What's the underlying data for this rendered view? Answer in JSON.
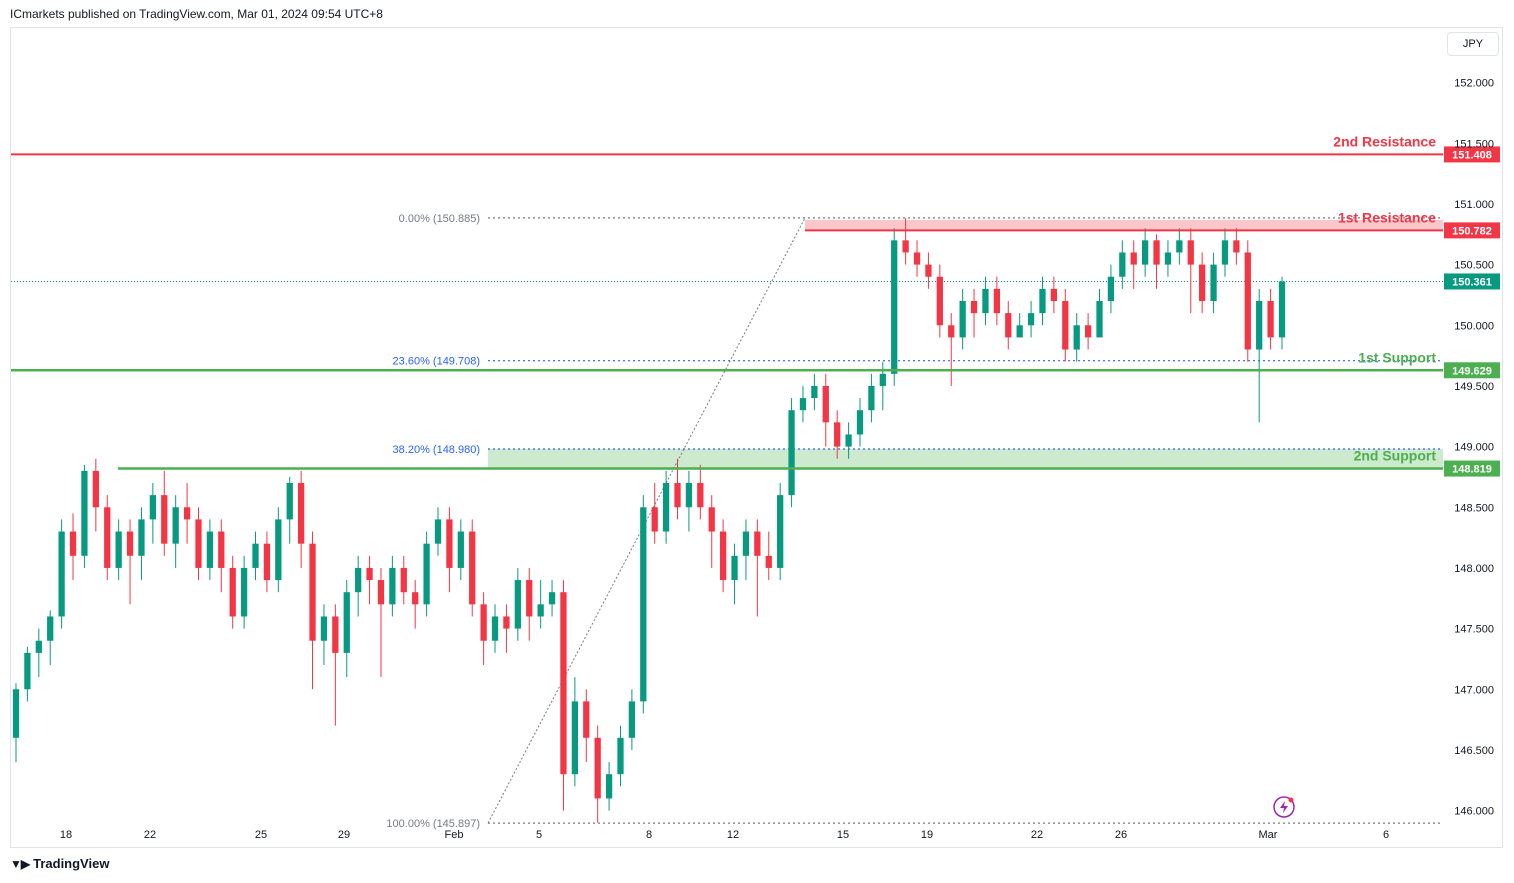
{
  "header": {
    "publisher_text": "ICmarkets published on TradingView.com, Mar 01, 2024 09:54 UTC+8"
  },
  "currency": "JPY",
  "footer": {
    "brand": "TradingView"
  },
  "chart_data": {
    "type": "candlestick",
    "ylim": [
      145.7,
      152.45
    ],
    "y_ticks": [
      "152.000",
      "151.500",
      "151.000",
      "150.500",
      "150.000",
      "149.500",
      "149.000",
      "148.500",
      "148.000",
      "147.500",
      "147.000",
      "146.500",
      "146.000"
    ],
    "x_ticks": [
      "18",
      "22",
      "25",
      "29",
      "Feb",
      "5",
      "8",
      "12",
      "15",
      "19",
      "22",
      "26",
      "Mar",
      "6"
    ],
    "current_price": {
      "value": 150.361,
      "label": "150.361"
    },
    "levels": [
      {
        "name": "2nd Resistance",
        "value": 151.408,
        "label": "151.408",
        "color": "#f23645"
      },
      {
        "name": "1st Resistance",
        "value": 150.782,
        "label": "150.782",
        "color": "#f23645"
      },
      {
        "name": "1st Support",
        "value": 149.629,
        "label": "149.629",
        "color": "#4caf50"
      },
      {
        "name": "2nd Support",
        "value": 148.819,
        "label": "148.819",
        "color": "#4caf50"
      }
    ],
    "fibonacci": [
      {
        "label": "0.00% (150.885)",
        "value": 150.885
      },
      {
        "label": "23.60% (149.708)",
        "value": 149.708
      },
      {
        "label": "38.20% (148.980)",
        "value": 148.98
      },
      {
        "label": "100.00% (145.897)",
        "value": 145.897
      }
    ],
    "candles": [
      [
        146.6,
        147.0,
        147.05,
        146.4
      ],
      [
        147.0,
        147.3,
        147.35,
        146.9
      ],
      [
        147.3,
        147.4,
        147.5,
        147.1
      ],
      [
        147.4,
        147.6,
        147.65,
        147.2
      ],
      [
        147.6,
        148.3,
        148.4,
        147.5
      ],
      [
        148.3,
        148.1,
        148.45,
        147.9
      ],
      [
        148.1,
        148.8,
        148.85,
        148.0
      ],
      [
        148.8,
        148.5,
        148.9,
        148.3
      ],
      [
        148.5,
        148.0,
        148.6,
        147.9
      ],
      [
        148.0,
        148.3,
        148.4,
        147.9
      ],
      [
        148.3,
        148.1,
        148.4,
        147.7
      ],
      [
        148.1,
        148.4,
        148.5,
        147.9
      ],
      [
        148.4,
        148.6,
        148.7,
        148.2
      ],
      [
        148.6,
        148.2,
        148.8,
        148.1
      ],
      [
        148.2,
        148.5,
        148.6,
        148.0
      ],
      [
        148.5,
        148.4,
        148.7,
        148.2
      ],
      [
        148.4,
        148.0,
        148.5,
        147.9
      ],
      [
        148.0,
        148.3,
        148.4,
        147.9
      ],
      [
        148.3,
        148.0,
        148.4,
        147.8
      ],
      [
        148.0,
        147.6,
        148.1,
        147.5
      ],
      [
        147.6,
        148.0,
        148.1,
        147.5
      ],
      [
        148.0,
        148.2,
        148.3,
        147.9
      ],
      [
        148.2,
        147.9,
        148.3,
        147.8
      ],
      [
        147.9,
        148.4,
        148.5,
        147.8
      ],
      [
        148.4,
        148.7,
        148.75,
        148.2
      ],
      [
        148.7,
        148.2,
        148.8,
        148.0
      ],
      [
        148.2,
        147.4,
        148.3,
        147.0
      ],
      [
        147.4,
        147.6,
        147.7,
        147.2
      ],
      [
        147.6,
        147.3,
        147.7,
        146.7
      ],
      [
        147.3,
        147.8,
        147.9,
        147.1
      ],
      [
        147.8,
        148.0,
        148.1,
        147.6
      ],
      [
        148.0,
        147.9,
        148.1,
        147.7
      ],
      [
        147.9,
        147.7,
        148.0,
        147.1
      ],
      [
        147.7,
        148.0,
        148.1,
        147.6
      ],
      [
        148.0,
        147.8,
        148.1,
        147.7
      ],
      [
        147.8,
        147.7,
        147.9,
        147.5
      ],
      [
        147.7,
        148.2,
        148.3,
        147.6
      ],
      [
        148.2,
        148.4,
        148.5,
        148.1
      ],
      [
        148.4,
        148.0,
        148.5,
        147.8
      ],
      [
        148.0,
        148.3,
        148.4,
        147.9
      ],
      [
        148.3,
        147.7,
        148.4,
        147.6
      ],
      [
        147.7,
        147.4,
        147.8,
        147.2
      ],
      [
        147.4,
        147.6,
        147.7,
        147.3
      ],
      [
        147.6,
        147.5,
        147.7,
        147.3
      ],
      [
        147.5,
        147.9,
        148.0,
        147.4
      ],
      [
        147.9,
        147.6,
        148.0,
        147.4
      ],
      [
        147.6,
        147.7,
        147.9,
        147.5
      ],
      [
        147.7,
        147.8,
        147.9,
        147.6
      ],
      [
        147.8,
        146.3,
        147.9,
        146.0
      ],
      [
        146.3,
        146.9,
        147.1,
        146.2
      ],
      [
        146.9,
        146.6,
        147.0,
        146.4
      ],
      [
        146.6,
        146.1,
        146.7,
        145.9
      ],
      [
        146.1,
        146.3,
        146.4,
        146.0
      ],
      [
        146.3,
        146.6,
        146.7,
        146.2
      ],
      [
        146.6,
        146.9,
        147.0,
        146.5
      ],
      [
        146.9,
        148.5,
        148.6,
        146.8
      ],
      [
        148.5,
        148.3,
        148.7,
        148.2
      ],
      [
        148.3,
        148.7,
        148.8,
        148.2
      ],
      [
        148.7,
        148.5,
        148.9,
        148.4
      ],
      [
        148.5,
        148.7,
        148.8,
        148.3
      ],
      [
        148.7,
        148.5,
        148.85,
        148.4
      ],
      [
        148.5,
        148.3,
        148.6,
        148.0
      ],
      [
        148.3,
        147.9,
        148.4,
        147.8
      ],
      [
        147.9,
        148.1,
        148.2,
        147.7
      ],
      [
        148.1,
        148.3,
        148.4,
        147.9
      ],
      [
        148.3,
        148.1,
        148.4,
        147.6
      ],
      [
        148.1,
        148.0,
        148.3,
        147.9
      ],
      [
        148.0,
        148.6,
        148.7,
        147.9
      ],
      [
        148.6,
        149.3,
        149.4,
        148.5
      ],
      [
        149.3,
        149.4,
        149.5,
        149.2
      ],
      [
        149.4,
        149.5,
        149.6,
        149.3
      ],
      [
        149.5,
        149.2,
        149.6,
        149.0
      ],
      [
        149.2,
        149.0,
        149.3,
        148.9
      ],
      [
        149.0,
        149.1,
        149.2,
        148.9
      ],
      [
        149.1,
        149.3,
        149.4,
        149.0
      ],
      [
        149.3,
        149.5,
        149.6,
        149.2
      ],
      [
        149.5,
        149.6,
        149.7,
        149.3
      ],
      [
        149.6,
        150.7,
        150.8,
        149.5
      ],
      [
        150.7,
        150.6,
        150.885,
        150.5
      ],
      [
        150.6,
        150.5,
        150.7,
        150.4
      ],
      [
        150.5,
        150.4,
        150.6,
        150.3
      ],
      [
        150.4,
        150.0,
        150.5,
        149.9
      ],
      [
        150.0,
        149.9,
        150.1,
        149.5
      ],
      [
        149.9,
        150.2,
        150.3,
        149.8
      ],
      [
        150.2,
        150.1,
        150.3,
        149.9
      ],
      [
        150.1,
        150.3,
        150.4,
        150.0
      ],
      [
        150.3,
        150.1,
        150.4,
        150.0
      ],
      [
        150.1,
        149.9,
        150.2,
        149.8
      ],
      [
        149.9,
        150.0,
        150.1,
        149.9
      ],
      [
        150.0,
        150.1,
        150.2,
        149.9
      ],
      [
        150.1,
        150.3,
        150.4,
        150.0
      ],
      [
        150.3,
        150.2,
        150.4,
        150.1
      ],
      [
        150.2,
        149.8,
        150.3,
        149.7
      ],
      [
        149.8,
        150.0,
        150.1,
        149.7
      ],
      [
        150.0,
        149.9,
        150.1,
        149.8
      ],
      [
        149.9,
        150.2,
        150.3,
        149.9
      ],
      [
        150.2,
        150.4,
        150.5,
        150.1
      ],
      [
        150.4,
        150.6,
        150.7,
        150.3
      ],
      [
        150.6,
        150.5,
        150.7,
        150.3
      ],
      [
        150.5,
        150.7,
        150.8,
        150.4
      ],
      [
        150.7,
        150.5,
        150.75,
        150.3
      ],
      [
        150.5,
        150.6,
        150.7,
        150.4
      ],
      [
        150.6,
        150.7,
        150.8,
        150.5
      ],
      [
        150.7,
        150.5,
        150.8,
        150.1
      ],
      [
        150.5,
        150.2,
        150.6,
        150.1
      ],
      [
        150.2,
        150.5,
        150.6,
        150.1
      ],
      [
        150.5,
        150.7,
        150.8,
        150.4
      ],
      [
        150.7,
        150.6,
        150.8,
        150.5
      ],
      [
        150.6,
        149.8,
        150.7,
        149.7
      ],
      [
        149.8,
        150.2,
        150.3,
        149.2
      ],
      [
        150.2,
        149.9,
        150.3,
        149.8
      ],
      [
        149.9,
        150.361,
        150.4,
        149.8
      ]
    ]
  }
}
